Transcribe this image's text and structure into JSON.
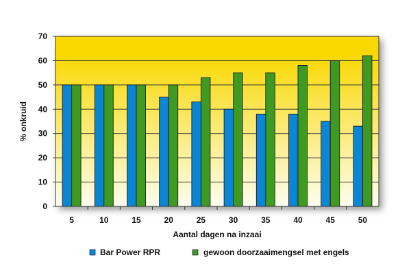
{
  "chart_data": {
    "type": "bar",
    "title": "",
    "xlabel": "Aantal dagen na inzaai",
    "ylabel": "% onkruid",
    "categories": [
      "5",
      "10",
      "15",
      "20",
      "25",
      "30",
      "35",
      "40",
      "45",
      "50"
    ],
    "series": [
      {
        "name": "Bar Power RPR",
        "color": "#0a86d6",
        "values": [
          50,
          50,
          50,
          45,
          43,
          40,
          38,
          38,
          35,
          33
        ]
      },
      {
        "name": "gewoon doorzaaimengsel met engels",
        "color": "#3f9a22",
        "values": [
          50,
          50,
          50,
          50,
          53,
          55,
          55,
          58,
          60,
          62
        ]
      }
    ],
    "ylim": [
      0,
      70
    ],
    "yticks": [
      0,
      10,
      20,
      30,
      40,
      50,
      60,
      70
    ],
    "grid": true,
    "legend": "bottom",
    "background_gradient": [
      "#f9d800",
      "#fffdf0"
    ]
  }
}
